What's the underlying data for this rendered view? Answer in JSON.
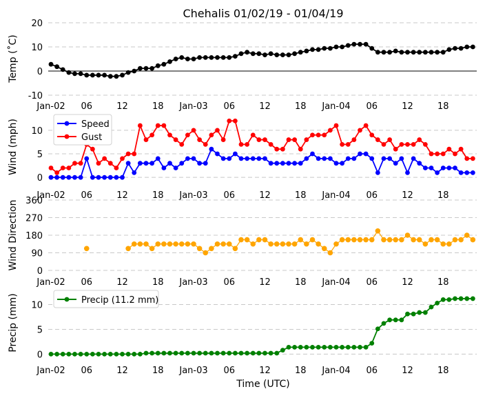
{
  "title": "Chehalis 01/02/19 - 01/04/19",
  "xlabel": "Time (UTC)",
  "x_tick_labels": [
    "Jan-02",
    "06",
    "12",
    "18",
    "Jan-03",
    "06",
    "12",
    "18",
    "Jan-04",
    "06",
    "12",
    "18"
  ],
  "x_tick_hours": [
    0,
    6,
    12,
    18,
    24,
    30,
    36,
    42,
    48,
    54,
    60,
    66
  ],
  "chart_data": [
    {
      "type": "line",
      "ylabel": "Temp (˚C)",
      "ylim": [
        -10,
        20
      ],
      "yticks": [
        -10,
        0,
        10,
        20
      ],
      "zero_line": true,
      "legend": null,
      "series": [
        {
          "name": "Temp",
          "color": "#000000",
          "values": [
            2.8,
            1.8,
            0.6,
            -0.6,
            -1.1,
            -1.1,
            -1.7,
            -1.7,
            -1.7,
            -1.7,
            -2.2,
            -2.2,
            -1.7,
            -0.6,
            0,
            1.1,
            1.1,
            1.1,
            2.2,
            2.8,
            3.9,
            5,
            5.6,
            5,
            5,
            5.6,
            5.6,
            5.6,
            5.6,
            5.6,
            5.6,
            6.1,
            7.2,
            7.8,
            7.2,
            7.2,
            6.7,
            7.2,
            6.7,
            6.7,
            6.7,
            7.2,
            7.8,
            8.3,
            8.9,
            8.9,
            9.4,
            9.4,
            10,
            10,
            10.6,
            11.1,
            11.1,
            11.1,
            9.4,
            7.8,
            7.8,
            7.8,
            8.3,
            7.8,
            7.8,
            7.8,
            7.8,
            7.8,
            7.8,
            7.8,
            7.8,
            8.9,
            9.4,
            9.4,
            10,
            10
          ]
        }
      ]
    },
    {
      "type": "line",
      "ylabel": "Wind (mph)",
      "ylim": [
        -1,
        13.5
      ],
      "yticks": [
        0,
        5,
        10
      ],
      "legend": "top-left",
      "series": [
        {
          "name": "Speed",
          "color": "#0000ff",
          "values": [
            0,
            0,
            0,
            0,
            0,
            0,
            4,
            0,
            0,
            0,
            0,
            0,
            0,
            3,
            1,
            3,
            3,
            3,
            4,
            2,
            3,
            2,
            3,
            4,
            4,
            3,
            3,
            6,
            5,
            4,
            4,
            5,
            4,
            4,
            4,
            4,
            4,
            3,
            3,
            3,
            3,
            3,
            3,
            4,
            5,
            4,
            4,
            4,
            3,
            3,
            4,
            4,
            5,
            5,
            4,
            1,
            4,
            4,
            3,
            4,
            1,
            4,
            3,
            2,
            2,
            1,
            2,
            2,
            2,
            1,
            1,
            1
          ]
        },
        {
          "name": "Gust",
          "color": "#ff0000",
          "values": [
            2,
            1,
            2,
            2,
            3,
            3,
            7,
            6,
            3,
            4,
            3,
            2,
            4,
            5,
            5,
            11,
            8,
            9,
            11,
            11,
            9,
            8,
            7,
            9,
            10,
            8,
            7,
            9,
            10,
            8,
            12,
            12,
            7,
            7,
            9,
            8,
            8,
            7,
            6,
            6,
            8,
            8,
            6,
            8,
            9,
            9,
            9,
            10,
            11,
            7,
            7,
            8,
            10,
            11,
            9,
            8,
            7,
            8,
            6,
            7,
            7,
            7,
            8,
            7,
            5,
            5,
            5,
            6,
            5,
            6,
            4,
            4
          ]
        }
      ]
    },
    {
      "type": "line",
      "ylabel": "Wind Direction",
      "ylim": [
        0,
        360
      ],
      "yticks": [
        0,
        90,
        180,
        270,
        360
      ],
      "legend": null,
      "series": [
        {
          "name": "Direction",
          "color": "#ffa500",
          "values": [
            null,
            null,
            null,
            null,
            null,
            null,
            112,
            null,
            null,
            null,
            null,
            null,
            null,
            112,
            135,
            135,
            135,
            112,
            135,
            135,
            135,
            135,
            135,
            135,
            135,
            112,
            90,
            112,
            135,
            135,
            135,
            112,
            157,
            157,
            135,
            157,
            157,
            135,
            135,
            135,
            135,
            135,
            157,
            135,
            157,
            135,
            112,
            90,
            135,
            157,
            157,
            157,
            157,
            157,
            157,
            202,
            157,
            157,
            157,
            157,
            180,
            157,
            157,
            135,
            157,
            157,
            135,
            135,
            157,
            157,
            180,
            157
          ]
        }
      ]
    },
    {
      "type": "line",
      "ylabel": "Precip (mm)",
      "ylim": [
        -0.5,
        13
      ],
      "yticks": [
        0,
        5,
        10
      ],
      "legend": "top-left",
      "series": [
        {
          "name": "Precip (11.2 mm)",
          "color": "#008000",
          "values": [
            0,
            0,
            0,
            0,
            0,
            0,
            0,
            0,
            0,
            0,
            0,
            0,
            0,
            0,
            0,
            0,
            0.2,
            0.2,
            0.2,
            0.2,
            0.2,
            0.2,
            0.2,
            0.2,
            0.2,
            0.2,
            0.2,
            0.2,
            0.2,
            0.2,
            0.2,
            0.2,
            0.2,
            0.2,
            0.2,
            0.2,
            0.2,
            0.2,
            0.2,
            0.8,
            1.4,
            1.4,
            1.4,
            1.4,
            1.4,
            1.4,
            1.4,
            1.4,
            1.4,
            1.4,
            1.4,
            1.4,
            1.4,
            1.4,
            2.2,
            5.1,
            6.2,
            6.9,
            6.9,
            6.9,
            8.1,
            8.1,
            8.4,
            8.4,
            9.5,
            10.3,
            11,
            11,
            11.2,
            11.2,
            11.2,
            11.2
          ]
        }
      ]
    }
  ]
}
